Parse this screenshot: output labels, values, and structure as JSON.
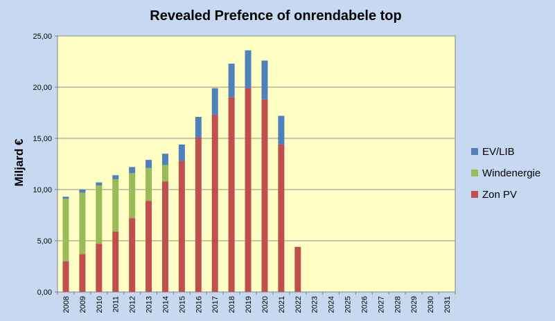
{
  "chart_data": {
    "type": "bar",
    "stacked": true,
    "title": "Revealed Prefence of onrendabele top",
    "xlabel": "",
    "ylabel": "Miljard  €",
    "ylim": [
      0,
      25
    ],
    "yticks": [
      "0,00",
      "5,00",
      "10,00",
      "15,00",
      "20,00",
      "25,00"
    ],
    "grid": true,
    "legend_position": "right",
    "categories": [
      "2008",
      "2009",
      "2010",
      "2011",
      "2012",
      "2013",
      "2014",
      "2015",
      "2016",
      "2017",
      "2018",
      "2019",
      "2020",
      "2021",
      "2022",
      "2023",
      "2024",
      "2025",
      "2026",
      "2027",
      "2028",
      "2029",
      "2030",
      "2031"
    ],
    "series": [
      {
        "name": "Zon PV",
        "color": "#c0504d",
        "values": [
          3.0,
          3.7,
          4.7,
          5.9,
          7.2,
          8.9,
          10.8,
          12.8,
          15.1,
          17.3,
          19.0,
          19.9,
          18.8,
          14.4,
          4.4,
          0,
          0,
          0,
          0,
          0,
          0,
          0,
          0,
          0
        ]
      },
      {
        "name": "Windenergie",
        "color": "#9bbb59",
        "values": [
          6.1,
          6.0,
          5.7,
          5.1,
          4.4,
          3.2,
          1.6,
          0,
          0,
          0,
          0,
          0,
          0,
          0,
          0,
          0,
          0,
          0,
          0,
          0,
          0,
          0,
          0,
          0
        ]
      },
      {
        "name": "EV/LIB",
        "color": "#4f81bd",
        "values": [
          0.2,
          0.3,
          0.3,
          0.4,
          0.6,
          0.8,
          1.1,
          1.6,
          2.0,
          2.6,
          3.3,
          3.7,
          3.8,
          2.8,
          0,
          0,
          0,
          0,
          0,
          0,
          0,
          0,
          0,
          0
        ]
      }
    ],
    "legend_order": [
      "EV/LIB",
      "Windenergie",
      "Zon PV"
    ]
  },
  "colors": {
    "background": "#c6d9f1",
    "plot_area": "#ffffc5",
    "gridline": "#8c8c8c"
  }
}
